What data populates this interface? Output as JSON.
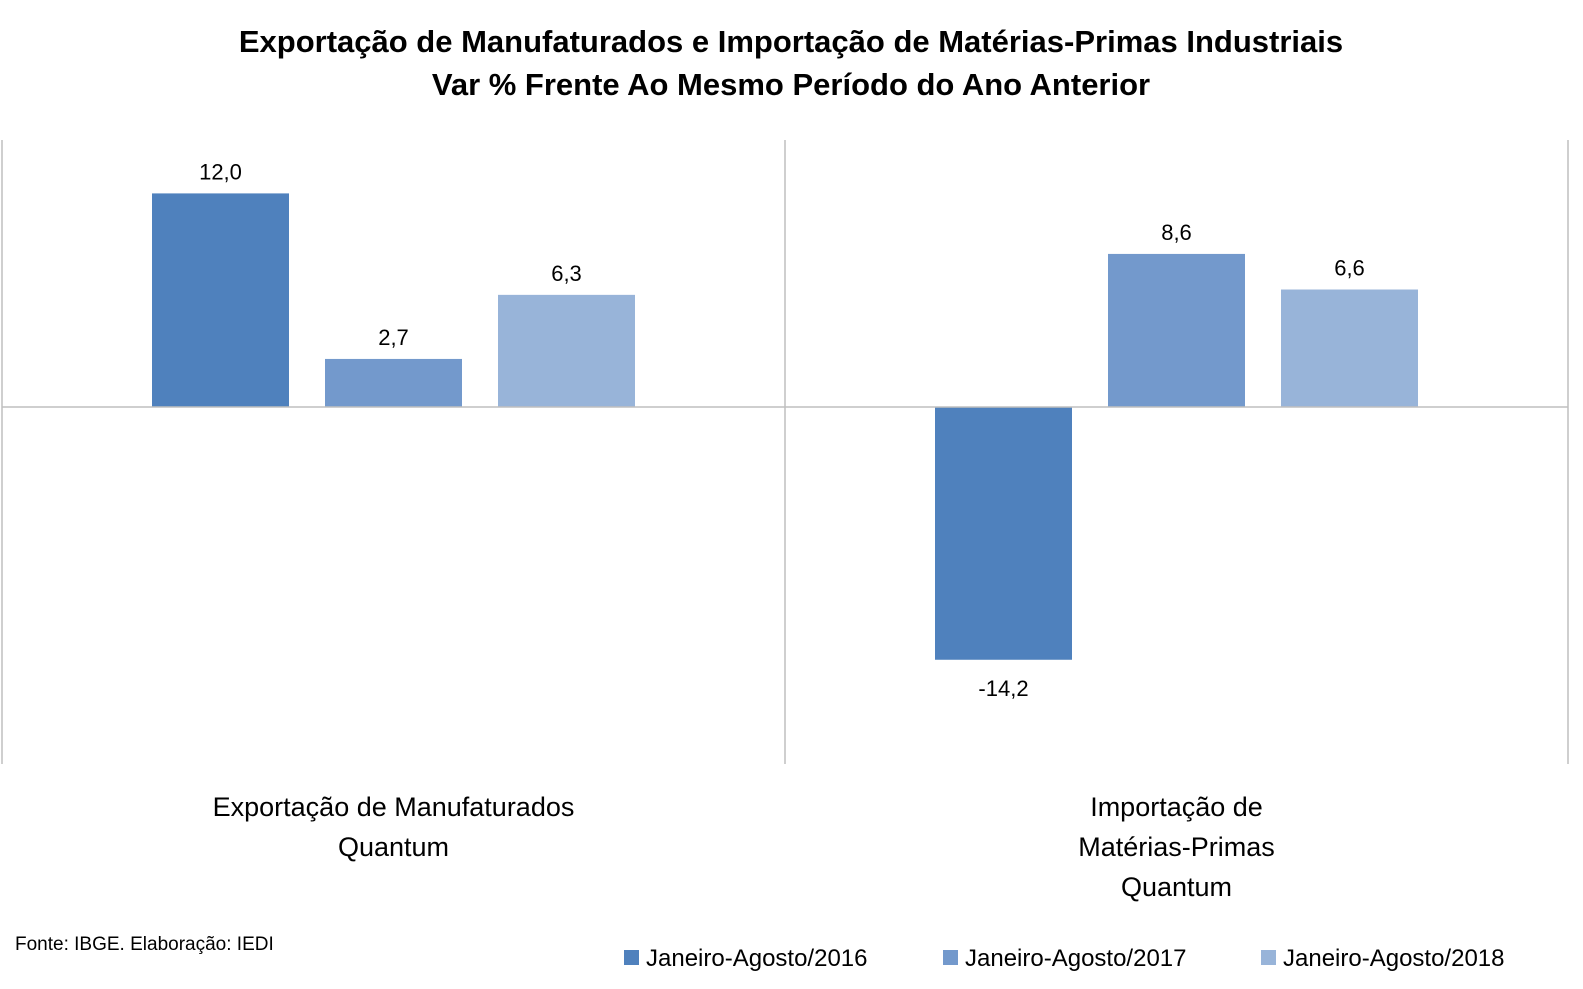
{
  "chart_data": {
    "type": "bar",
    "title": "Exportação de Manufaturados e Importação de Matérias-Primas Industriais",
    "subtitle": "Var % Frente Ao Mesmo Período do Ano Anterior",
    "categories": [
      [
        "Exportação de Manufaturados",
        "Quantum"
      ],
      [
        "Importação de",
        "Matérias-Primas",
        "Quantum"
      ]
    ],
    "series": [
      {
        "name": "Janeiro-Agosto/2016",
        "color": "#4f81bd",
        "values": [
          12.0,
          -14.2
        ],
        "labels": [
          "12,0",
          "-14,2"
        ]
      },
      {
        "name": "Janeiro-Agosto/2017",
        "color": "#7399cc",
        "values": [
          2.7,
          8.6
        ],
        "labels": [
          "2,7",
          "8,6"
        ]
      },
      {
        "name": "Janeiro-Agosto/2018",
        "color": "#98b4d9",
        "values": [
          6.3,
          6.6
        ],
        "labels": [
          "6,3",
          "6,6"
        ]
      }
    ],
    "ylim": [
      -20,
      15
    ],
    "grid": false,
    "legend_position": "bottom-right",
    "source": "Fonte: IBGE. Elaboração: IEDI"
  }
}
